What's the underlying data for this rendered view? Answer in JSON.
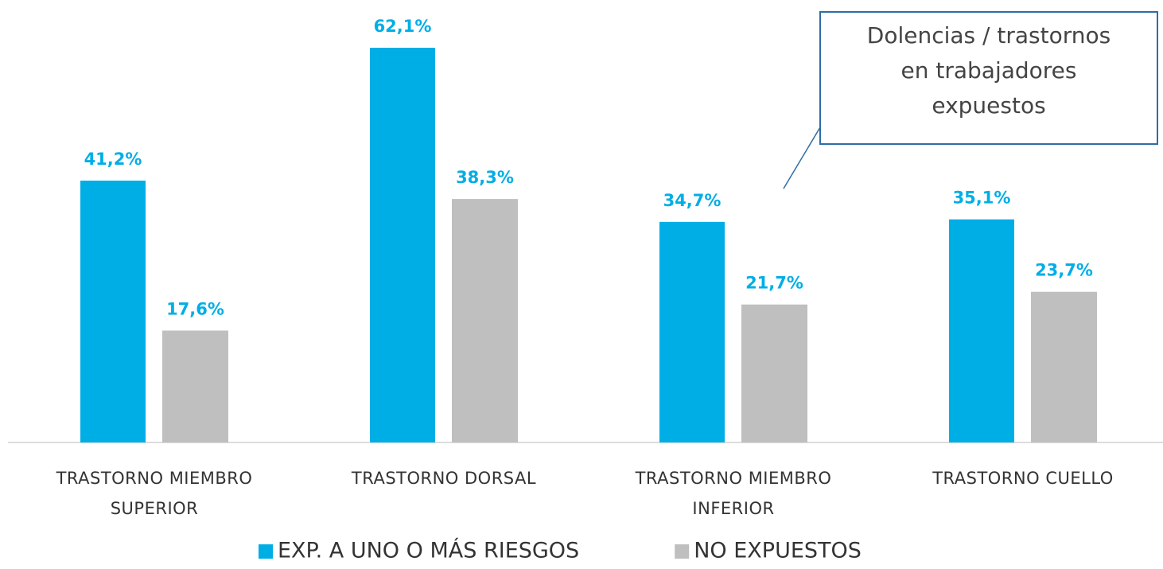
{
  "chart_data": {
    "type": "bar",
    "categories": [
      [
        "TRASTORNO MIEMBRO",
        "SUPERIOR"
      ],
      [
        "TRASTORNO DORSAL"
      ],
      [
        "TRASTORNO MIEMBRO",
        "INFERIOR"
      ],
      [
        "TRASTORNO CUELLO"
      ]
    ],
    "series": [
      {
        "name": "EXP. A UNO O MÁS RIESGOS",
        "color": "#00aee6",
        "values": [
          41.2,
          62.1,
          34.7,
          35.1
        ],
        "value_labels": [
          "41,2%",
          "62,1%",
          "34,7%",
          "35,1%"
        ]
      },
      {
        "name": "NO EXPUESTOS",
        "color": "#bfbfbf",
        "values": [
          17.6,
          38.3,
          21.7,
          23.7
        ],
        "value_labels": [
          "17,6%",
          "38,3%",
          "21,7%",
          "23,7%"
        ]
      }
    ],
    "annotation": [
      "Dolencias / trastornos",
      "en trabajadores",
      "expuestos"
    ],
    "legend": "bottom"
  }
}
